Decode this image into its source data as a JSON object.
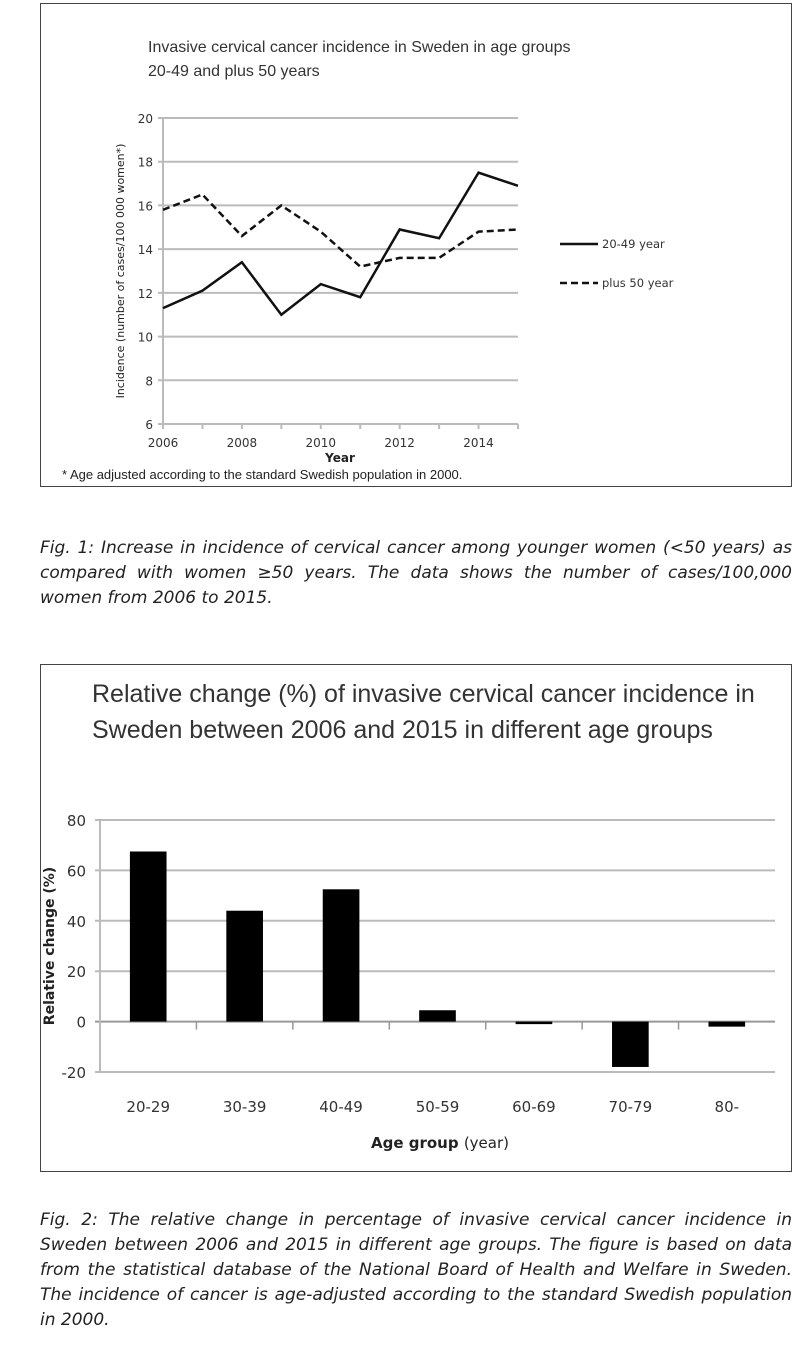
{
  "chart_data": [
    {
      "type": "line",
      "title": "Invasive cervical cancer incidence in Sweden in age groups 20-49 and plus 50 years",
      "xlabel": "Year",
      "ylabel": "Incidence (number of cases/100 000 women*)",
      "x": [
        2006,
        2007,
        2008,
        2009,
        2010,
        2011,
        2012,
        2013,
        2014,
        2015
      ],
      "xticks": [
        "2006",
        "2008",
        "2010",
        "2012",
        "2014"
      ],
      "yticks": [
        "6",
        "8",
        "10",
        "12",
        "14",
        "16",
        "18",
        "20"
      ],
      "ylim": [
        6,
        20
      ],
      "grid": true,
      "legend": "right",
      "series": [
        {
          "name": "20-49 year",
          "style": "solid",
          "values": [
            11.3,
            12.1,
            13.4,
            11.0,
            12.4,
            11.8,
            14.9,
            14.5,
            17.5,
            16.9
          ]
        },
        {
          "name": "plus 50 year",
          "style": "dashed",
          "values": [
            15.8,
            16.5,
            14.6,
            16.0,
            14.8,
            13.2,
            13.6,
            13.6,
            14.8,
            14.9
          ]
        }
      ],
      "note": "* Age adjusted according to the standard Swedish population in 2000."
    },
    {
      "type": "bar",
      "title": "Relative change (%) of invasive cervical cancer incidence in Sweden between 2006 and 2015 in different age groups",
      "xlabel_bold": "Age group",
      "xlabel_rest": "(year)",
      "ylabel": "Relative change (%)",
      "categories": [
        "20-29",
        "30-39",
        "40-49",
        "50-59",
        "60-69",
        "70-79",
        "80-"
      ],
      "values": [
        67.5,
        44,
        52.5,
        4.5,
        -1,
        -18,
        -2
      ],
      "yticks": [
        "-20",
        "0",
        "20",
        "40",
        "60",
        "80"
      ],
      "ylim": [
        -20,
        80
      ],
      "grid": true
    }
  ],
  "captions": {
    "fig1": "Fig. 1: Increase in incidence of cervical cancer among younger women (<50 years) as compared with women ≥50 years. The data shows the number of cases/100,000 women from 2006 to 2015.",
    "fig2": "Fig. 2: The relative change in percentage of invasive cervical cancer incidence in Sweden between 2006 and 2015 in different age groups. The figure is based on data from the statistical database of the National Board of Health and Welfare in Sweden. The incidence of cancer is age-adjusted according to the standard Swedish population in 2000."
  }
}
